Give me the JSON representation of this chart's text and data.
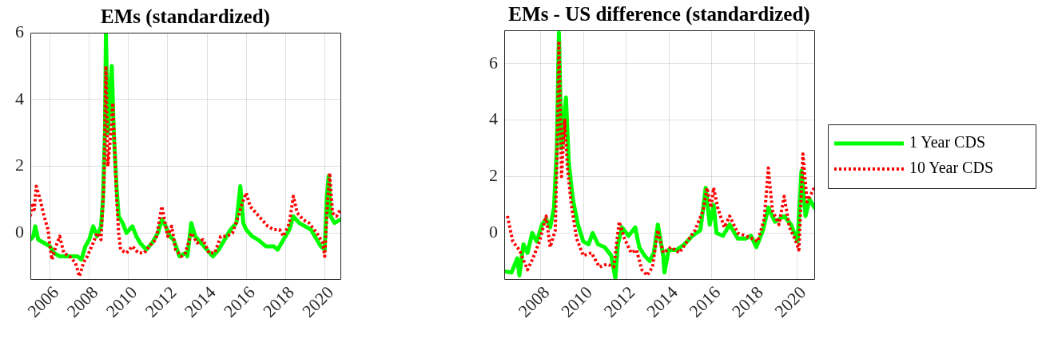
{
  "chart_data": [
    {
      "type": "line",
      "title": "EMs (standardized)",
      "xlim": [
        2005.0,
        2020.8
      ],
      "xticks": [
        2006,
        2008,
        2010,
        2012,
        2014,
        2016,
        2018,
        2020
      ],
      "ylim": [
        -1.38,
        6
      ],
      "yticks": [
        0,
        2,
        4,
        6
      ],
      "grid": true,
      "legend": false,
      "marker": "none",
      "series": [
        {
          "color": "#00ff00",
          "line_style": "solid",
          "x": [
            2005.0,
            2005.15,
            2005.25,
            2005.4,
            2005.7,
            2006.0,
            2006.2,
            2006.5,
            2007.0,
            2007.4,
            2007.6,
            2007.8,
            2008.0,
            2008.2,
            2008.4,
            2008.6,
            2008.7,
            2008.8,
            2008.85,
            2008.95,
            2009.05,
            2009.15,
            2009.25,
            2009.4,
            2009.5,
            2009.7,
            2009.9,
            2010.2,
            2010.4,
            2010.6,
            2010.9,
            2011.2,
            2011.5,
            2011.7,
            2011.9,
            2012.1,
            2012.3,
            2012.6,
            2012.9,
            2013.0,
            2013.2,
            2013.4,
            2013.7,
            2014.0,
            2014.3,
            2014.6,
            2014.9,
            2015.2,
            2015.5,
            2015.7,
            2015.85,
            2016.0,
            2016.3,
            2016.6,
            2017.0,
            2017.4,
            2017.6,
            2017.9,
            2018.2,
            2018.4,
            2018.7,
            2019.0,
            2019.3,
            2019.5,
            2019.8,
            2020.0,
            2020.1,
            2020.2,
            2020.3,
            2020.5,
            2020.8
          ],
          "values": [
            -0.2,
            -0.1,
            0.2,
            -0.2,
            -0.3,
            -0.4,
            -0.6,
            -0.7,
            -0.7,
            -0.7,
            -0.8,
            -0.4,
            -0.2,
            0.2,
            -0.1,
            0.2,
            1.0,
            3.0,
            6.0,
            3.0,
            4.0,
            5.0,
            3.0,
            1.3,
            0.5,
            0.3,
            0.0,
            0.2,
            -0.1,
            -0.3,
            -0.5,
            -0.3,
            0.0,
            0.4,
            0.2,
            -0.1,
            -0.2,
            -0.7,
            -0.6,
            -0.7,
            0.3,
            -0.1,
            -0.3,
            -0.5,
            -0.7,
            -0.5,
            -0.2,
            0.1,
            0.3,
            1.4,
            0.3,
            0.1,
            -0.1,
            -0.2,
            -0.4,
            -0.4,
            -0.5,
            -0.2,
            0.1,
            0.5,
            0.3,
            0.2,
            0.1,
            -0.1,
            -0.4,
            -0.5,
            1.0,
            1.7,
            0.5,
            0.3,
            0.4
          ]
        },
        {
          "color": "#ff0000",
          "line_style": "dotted",
          "x": [
            2005.0,
            2005.1,
            2005.2,
            2005.3,
            2005.5,
            2005.7,
            2005.9,
            2006.0,
            2006.1,
            2006.3,
            2006.5,
            2006.7,
            2007.0,
            2007.3,
            2007.5,
            2007.7,
            2007.9,
            2008.2,
            2008.4,
            2008.6,
            2008.75,
            2008.85,
            2008.95,
            2009.1,
            2009.2,
            2009.3,
            2009.4,
            2009.5,
            2009.6,
            2009.9,
            2010.2,
            2010.5,
            2010.8,
            2011.2,
            2011.4,
            2011.7,
            2011.9,
            2012.0,
            2012.2,
            2012.4,
            2012.7,
            2012.9,
            2013.2,
            2013.5,
            2013.8,
            2014.1,
            2014.4,
            2014.7,
            2015.0,
            2015.3,
            2015.6,
            2015.8,
            2016.0,
            2016.2,
            2016.5,
            2016.8,
            2017.1,
            2017.4,
            2017.7,
            2017.9,
            2018.2,
            2018.4,
            2018.6,
            2018.9,
            2019.2,
            2019.6,
            2019.9,
            2020.0,
            2020.15,
            2020.25,
            2020.4,
            2020.6,
            2020.8
          ],
          "values": [
            0.5,
            0.9,
            0.7,
            1.4,
            1.0,
            0.5,
            0.1,
            -0.4,
            -0.8,
            -0.4,
            -0.1,
            -0.6,
            -0.7,
            -0.9,
            -1.3,
            -0.9,
            -0.7,
            -0.3,
            0.0,
            -0.2,
            1.5,
            5.0,
            2.0,
            3.0,
            3.9,
            2.5,
            1.0,
            0.0,
            -0.5,
            -0.6,
            -0.4,
            -0.6,
            -0.6,
            -0.3,
            -0.2,
            0.8,
            0.2,
            -0.1,
            0.2,
            -0.5,
            -0.7,
            -0.6,
            0.0,
            -0.3,
            -0.2,
            -0.6,
            -0.6,
            -0.1,
            -0.1,
            0.0,
            0.5,
            0.9,
            1.2,
            0.8,
            0.6,
            0.4,
            0.2,
            0.1,
            0.1,
            -0.1,
            0.3,
            1.1,
            0.6,
            0.4,
            0.3,
            0.0,
            -0.3,
            -0.7,
            1.0,
            1.8,
            0.6,
            0.5,
            0.7
          ]
        }
      ]
    },
    {
      "type": "line",
      "title": "EMs - US difference (standardized)",
      "xlim": [
        2006.29,
        2020.8
      ],
      "xticks": [
        2008,
        2010,
        2012,
        2014,
        2016,
        2018,
        2020
      ],
      "ylim": [
        -1.63,
        7.18
      ],
      "yticks": [
        0,
        2,
        4,
        6
      ],
      "grid": true,
      "legend": "right",
      "marker": "none",
      "series": [
        {
          "name": "1 Year CDS",
          "color": "#00ff00",
          "line_style": "solid",
          "x": [
            2006.29,
            2006.63,
            2006.9,
            2007.0,
            2007.19,
            2007.38,
            2007.6,
            2007.81,
            2008.06,
            2008.25,
            2008.44,
            2008.62,
            2008.75,
            2008.85,
            2008.97,
            2009.08,
            2009.18,
            2009.31,
            2009.5,
            2009.74,
            2009.99,
            2010.24,
            2010.43,
            2010.68,
            2010.99,
            2011.3,
            2011.49,
            2011.61,
            2011.8,
            2012.11,
            2012.42,
            2012.61,
            2012.86,
            2013.1,
            2013.29,
            2013.48,
            2013.73,
            2013.79,
            2013.98,
            2014.35,
            2014.72,
            2015.1,
            2015.47,
            2015.72,
            2015.91,
            2016.09,
            2016.22,
            2016.53,
            2016.84,
            2017.22,
            2017.59,
            2017.84,
            2018.09,
            2018.4,
            2018.65,
            2018.96,
            2019.39,
            2019.71,
            2020.02,
            2020.2,
            2020.39,
            2020.58,
            2020.8
          ],
          "values": [
            -1.35,
            -1.4,
            -0.9,
            -1.5,
            -0.4,
            -0.7,
            0.0,
            -0.3,
            0.3,
            0.5,
            0.2,
            0.9,
            3.0,
            7.1,
            3.0,
            4.0,
            4.8,
            2.5,
            1.2,
            0.3,
            -0.3,
            -0.4,
            0.0,
            -0.4,
            -0.5,
            -0.8,
            -1.6,
            -0.4,
            0.2,
            -0.1,
            0.2,
            -0.5,
            -0.8,
            -1.0,
            -0.7,
            0.3,
            -0.8,
            -1.4,
            -0.6,
            -0.6,
            -0.4,
            -0.1,
            0.1,
            1.6,
            0.3,
            1.0,
            0.0,
            -0.1,
            0.3,
            -0.2,
            -0.2,
            -0.1,
            -0.5,
            0.1,
            0.9,
            0.4,
            0.6,
            0.3,
            -0.3,
            2.2,
            0.6,
            1.2,
            0.9
          ]
        },
        {
          "name": "10 Year CDS",
          "color": "#ff0000",
          "line_style": "dotted",
          "x": [
            2006.44,
            2006.69,
            2007.0,
            2007.38,
            2007.63,
            2007.94,
            2008.25,
            2008.44,
            2008.68,
            2008.77,
            2008.85,
            2008.97,
            2009.12,
            2009.25,
            2009.43,
            2009.68,
            2009.99,
            2010.37,
            2010.74,
            2011.11,
            2011.42,
            2011.67,
            2011.92,
            2012.23,
            2012.48,
            2012.73,
            2012.98,
            2013.23,
            2013.48,
            2013.73,
            2014.1,
            2014.48,
            2014.85,
            2015.22,
            2015.6,
            2015.78,
            2015.97,
            2016.09,
            2016.28,
            2016.59,
            2016.84,
            2017.22,
            2017.59,
            2017.9,
            2018.15,
            2018.46,
            2018.65,
            2018.84,
            2019.15,
            2019.39,
            2019.64,
            2019.89,
            2020.08,
            2020.27,
            2020.46,
            2020.8
          ],
          "values": [
            0.6,
            -0.3,
            -0.6,
            -1.3,
            -0.9,
            -0.3,
            0.6,
            -0.5,
            0.1,
            3.0,
            6.8,
            2.0,
            4.0,
            2.3,
            1.0,
            -0.2,
            -0.8,
            -0.7,
            -1.2,
            -1.1,
            -1.2,
            0.4,
            -0.2,
            -0.7,
            -0.6,
            -1.3,
            -1.5,
            -1.2,
            0.1,
            -0.7,
            -0.5,
            -0.7,
            -0.3,
            0.1,
            0.8,
            1.6,
            0.9,
            1.6,
            0.9,
            0.2,
            0.6,
            0.0,
            -0.1,
            -0.2,
            -0.3,
            0.5,
            2.3,
            0.8,
            0.3,
            1.3,
            0.2,
            -0.2,
            -0.6,
            2.8,
            1.1,
            1.6
          ]
        }
      ]
    }
  ]
}
